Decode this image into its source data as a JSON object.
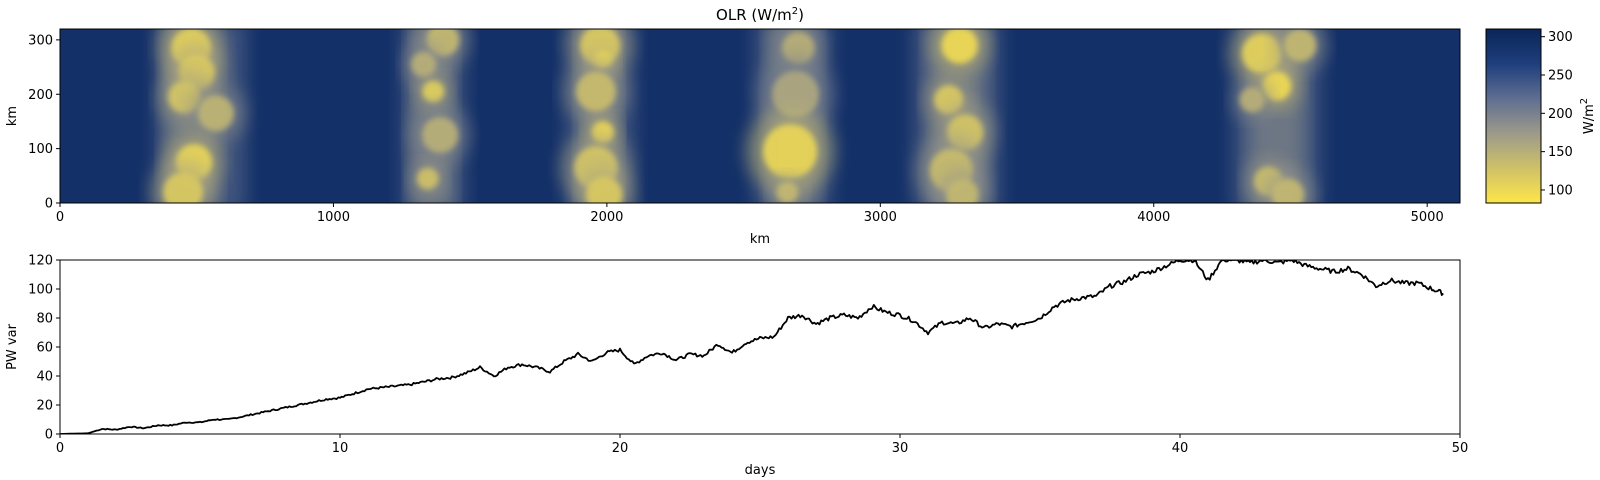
{
  "chart_data": [
    {
      "type": "heatmap",
      "title": "OLR (W/m",
      "title_superscript": "2",
      "title_suffix": ")",
      "xlabel": "km",
      "ylabel": "km",
      "xlim": [
        0,
        5120
      ],
      "ylim": [
        0,
        320
      ],
      "xticks": [
        "0",
        "1000",
        "2000",
        "3000",
        "4000",
        "5000"
      ],
      "yticks": [
        "0",
        "100",
        "200",
        "300"
      ],
      "colorbar": {
        "label": "W/m",
        "label_superscript": "2",
        "range": [
          83,
          310
        ],
        "ticks": [
          "100",
          "150",
          "200",
          "250",
          "300"
        ],
        "colors": [
          "#fde64a",
          "#cfc168",
          "#9c9a8a",
          "#5f6e90",
          "#1e3e7d",
          "#0a2557"
        ]
      },
      "background_value": 290,
      "convective_bands": [
        {
          "x_center": 480,
          "width": 300,
          "x_range": [
            350,
            680
          ],
          "clouds": [
            {
              "x": 480,
              "y": 285,
              "r": 22,
              "v": 110
            },
            {
              "x": 500,
              "y": 240,
              "r": 20,
              "v": 120
            },
            {
              "x": 455,
              "y": 195,
              "r": 18,
              "v": 125
            },
            {
              "x": 570,
              "y": 165,
              "r": 20,
              "v": 145
            },
            {
              "x": 490,
              "y": 75,
              "r": 20,
              "v": 105
            },
            {
              "x": 450,
              "y": 20,
              "r": 22,
              "v": 120
            }
          ]
        },
        {
          "x_center": 1360,
          "width": 250,
          "x_range": [
            1250,
            1480
          ],
          "clouds": [
            {
              "x": 1400,
              "y": 300,
              "r": 18,
              "v": 140
            },
            {
              "x": 1330,
              "y": 255,
              "r": 14,
              "v": 150
            },
            {
              "x": 1365,
              "y": 205,
              "r": 12,
              "v": 115
            },
            {
              "x": 1390,
              "y": 125,
              "r": 20,
              "v": 150
            },
            {
              "x": 1345,
              "y": 45,
              "r": 12,
              "v": 130
            }
          ]
        },
        {
          "x_center": 1970,
          "width": 220,
          "x_range": [
            1850,
            2100
          ],
          "clouds": [
            {
              "x": 1975,
              "y": 290,
              "r": 22,
              "v": 120
            },
            {
              "x": 1985,
              "y": 265,
              "r": 10,
              "v": 105
            },
            {
              "x": 1960,
              "y": 205,
              "r": 22,
              "v": 135
            },
            {
              "x": 1985,
              "y": 130,
              "r": 12,
              "v": 100
            },
            {
              "x": 1960,
              "y": 65,
              "r": 24,
              "v": 125
            },
            {
              "x": 1990,
              "y": 15,
              "r": 20,
              "v": 120
            }
          ]
        },
        {
          "x_center": 2680,
          "width": 280,
          "x_range": [
            2540,
            2820
          ],
          "clouds": [
            {
              "x": 2700,
              "y": 285,
              "r": 18,
              "v": 150
            },
            {
              "x": 2690,
              "y": 200,
              "r": 26,
              "v": 160
            },
            {
              "x": 2670,
              "y": 95,
              "r": 30,
              "v": 105
            },
            {
              "x": 2660,
              "y": 20,
              "r": 12,
              "v": 140
            }
          ]
        },
        {
          "x_center": 3280,
          "width": 320,
          "x_range": [
            3120,
            3440
          ],
          "clouds": [
            {
              "x": 3290,
              "y": 290,
              "r": 20,
              "v": 100
            },
            {
              "x": 3250,
              "y": 190,
              "r": 16,
              "v": 120
            },
            {
              "x": 3310,
              "y": 130,
              "r": 20,
              "v": 125
            },
            {
              "x": 3260,
              "y": 60,
              "r": 24,
              "v": 135
            },
            {
              "x": 3300,
              "y": 15,
              "r": 18,
              "v": 140
            }
          ]
        },
        {
          "x_center": 4450,
          "width": 320,
          "x_range": [
            4290,
            4610
          ],
          "clouds": [
            {
              "x": 4395,
              "y": 275,
              "r": 22,
              "v": 110
            },
            {
              "x": 4535,
              "y": 290,
              "r": 18,
              "v": 140
            },
            {
              "x": 4450,
              "y": 215,
              "r": 16,
              "v": 100
            },
            {
              "x": 4360,
              "y": 190,
              "r": 14,
              "v": 150
            },
            {
              "x": 4420,
              "y": 40,
              "r": 16,
              "v": 130
            },
            {
              "x": 4490,
              "y": 15,
              "r": 18,
              "v": 140
            }
          ]
        }
      ]
    },
    {
      "type": "line",
      "title": "",
      "xlabel": "days",
      "ylabel": "PW var",
      "xlim": [
        0,
        50
      ],
      "ylim": [
        0,
        120
      ],
      "xticks": [
        "0",
        "10",
        "20",
        "30",
        "40",
        "50"
      ],
      "yticks": [
        "0",
        "20",
        "40",
        "60",
        "80",
        "100",
        "120"
      ],
      "color": "#000000",
      "x": [
        0,
        1,
        1.5,
        2,
        2.5,
        3,
        3.5,
        4,
        4.5,
        5,
        5.5,
        6,
        6.5,
        7,
        7.5,
        8,
        8.5,
        9,
        9.5,
        10,
        10.5,
        11,
        11.5,
        12,
        12.5,
        13,
        13.5,
        14,
        14.5,
        15,
        15.5,
        16,
        16.5,
        17,
        17.5,
        18,
        18.5,
        19,
        19.5,
        20,
        20.5,
        21,
        21.5,
        22,
        22.5,
        23,
        23.5,
        24,
        24.5,
        25,
        25.5,
        26,
        26.5,
        27,
        27.5,
        28,
        28.5,
        29,
        29.5,
        30,
        30.5,
        31,
        31.5,
        32,
        32.5,
        33,
        33.5,
        34,
        34.5,
        35,
        35.5,
        36,
        36.5,
        37,
        37.5,
        38,
        38.5,
        39,
        39.5,
        40,
        40.5,
        41,
        41.5,
        42,
        42.5,
        43,
        43.5,
        44,
        44.5,
        45,
        45.5,
        46,
        46.5,
        47,
        47.5,
        48,
        48.5,
        49,
        49.4
      ],
      "values": [
        0,
        0.5,
        3.5,
        3,
        5,
        4,
        6,
        6,
        8,
        8,
        10,
        10,
        12,
        14,
        16,
        18,
        20,
        22,
        24,
        25,
        28,
        31,
        32,
        33,
        34,
        36,
        38,
        39,
        42,
        46,
        40,
        46,
        48,
        46,
        43,
        50,
        55,
        50,
        56,
        58,
        48,
        54,
        56,
        51,
        55,
        54,
        62,
        56,
        63,
        66,
        67,
        80,
        82,
        76,
        80,
        82,
        80,
        88,
        84,
        82,
        78,
        70,
        77,
        76,
        80,
        73,
        76,
        74,
        77,
        80,
        88,
        92,
        94,
        95,
        102,
        105,
        110,
        112,
        116,
        120,
        120,
        106,
        120,
        120,
        118,
        120,
        118,
        120,
        116,
        114,
        112,
        114,
        110,
        102,
        106,
        104,
        104,
        100,
        97
      ]
    }
  ]
}
